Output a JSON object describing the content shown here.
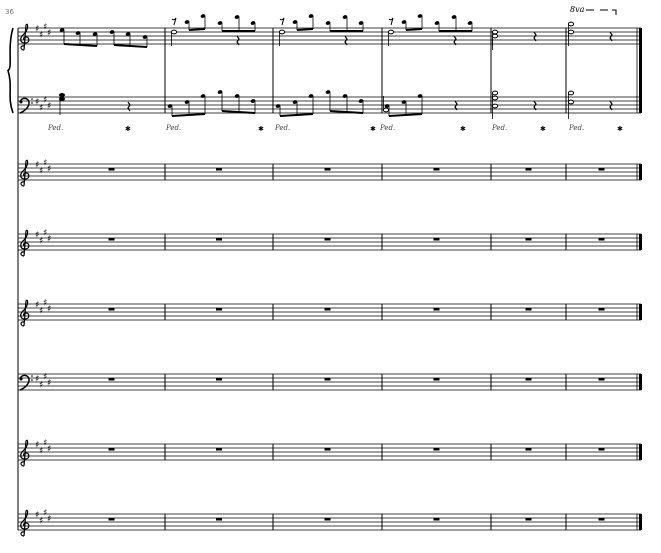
{
  "score": {
    "measure_number": "36",
    "ottava_label": "8va",
    "pedal_label": "Ped.",
    "pedal_release_label": "✱",
    "key_signature": "4 sharps (E major)",
    "measures_in_system": 6,
    "staves": [
      {
        "name": "piano-right-hand",
        "clef": "treble"
      },
      {
        "name": "piano-left-hand",
        "clef": "bass"
      },
      {
        "name": "staff-3",
        "clef": "treble",
        "content": "whole rests"
      },
      {
        "name": "staff-4",
        "clef": "treble",
        "content": "whole rests"
      },
      {
        "name": "staff-5",
        "clef": "treble",
        "content": "whole rests"
      },
      {
        "name": "staff-6",
        "clef": "bass",
        "content": "whole rests"
      },
      {
        "name": "staff-7",
        "clef": "treble",
        "content": "whole rests"
      },
      {
        "name": "staff-8",
        "clef": "treble",
        "content": "whole rests"
      }
    ],
    "ink_color": "#000000"
  }
}
